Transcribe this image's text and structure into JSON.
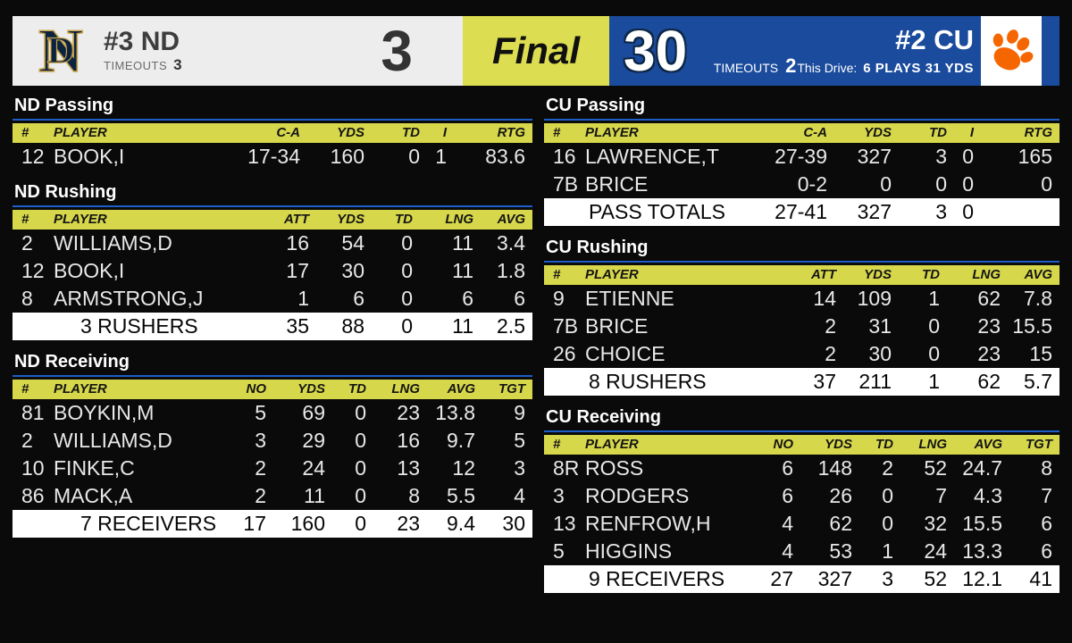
{
  "scoreboard": {
    "home": {
      "team": "#3 ND",
      "timeouts_label": "TIMEOUTS",
      "timeouts": "3",
      "score": "3",
      "logo": "nd-monogram"
    },
    "status": "Final",
    "away": {
      "team": "#2 CU",
      "timeouts_label": "TIMEOUTS",
      "timeouts": "2",
      "drive_label": "This Drive:",
      "drive_value": "6 PLAYS 31 YDS",
      "score": "30",
      "logo": "clemson-paw"
    }
  },
  "colors": {
    "header_yellow": "#d6d74b",
    "panel_yellow": "#dcdd50",
    "cu_blue": "#1a4b9c",
    "rule_blue": "#1d5ec7",
    "nd_navy": "#0c2340",
    "nd_gold": "#c9a44c",
    "clemson_orange": "#f56600",
    "panel_gray": "#ededed",
    "score_outline": "#0d2747"
  },
  "sections": [
    {
      "id": "nd-passing",
      "side": "left",
      "kind": "passing",
      "title": "ND Passing",
      "columns": [
        "#",
        "PLAYER",
        "C-A",
        "YDS",
        "TD",
        "I",
        "RTG"
      ],
      "rows": [
        [
          "12",
          "BOOK,I",
          "17-34",
          "160",
          "0",
          "1",
          "83.6"
        ]
      ],
      "totals": null
    },
    {
      "id": "nd-rushing",
      "side": "left",
      "kind": "rushing",
      "title": "ND Rushing",
      "columns": [
        "#",
        "PLAYER",
        "ATT",
        "YDS",
        "TD",
        "LNG",
        "AVG"
      ],
      "rows": [
        [
          "2",
          "WILLIAMS,D",
          "16",
          "54",
          "0",
          "11",
          "3.4"
        ],
        [
          "12",
          "BOOK,I",
          "17",
          "30",
          "0",
          "11",
          "1.8"
        ],
        [
          "8",
          "ARMSTRONG,J",
          "1",
          "6",
          "0",
          "6",
          "6"
        ]
      ],
      "totals": [
        "",
        "3 RUSHERS",
        "35",
        "88",
        "0",
        "11",
        "2.5"
      ]
    },
    {
      "id": "nd-receiving",
      "side": "left",
      "kind": "receiving",
      "title": "ND Receiving",
      "columns": [
        "#",
        "PLAYER",
        "NO",
        "YDS",
        "TD",
        "LNG",
        "AVG",
        "TGT"
      ],
      "rows": [
        [
          "81",
          "BOYKIN,M",
          "5",
          "69",
          "0",
          "23",
          "13.8",
          "9"
        ],
        [
          "2",
          "WILLIAMS,D",
          "3",
          "29",
          "0",
          "16",
          "9.7",
          "5"
        ],
        [
          "10",
          "FINKE,C",
          "2",
          "24",
          "0",
          "13",
          "12",
          "3"
        ],
        [
          "86",
          "MACK,A",
          "2",
          "11",
          "0",
          "8",
          "5.5",
          "4"
        ]
      ],
      "totals": [
        "",
        "7 RECEIVERS",
        "17",
        "160",
        "0",
        "23",
        "9.4",
        "30"
      ]
    },
    {
      "id": "cu-passing",
      "side": "right",
      "kind": "passing",
      "title": "CU Passing",
      "columns": [
        "#",
        "PLAYER",
        "C-A",
        "YDS",
        "TD",
        "I",
        "RTG"
      ],
      "rows": [
        [
          "16",
          "LAWRENCE,T",
          "27-39",
          "327",
          "3",
          "0",
          "165"
        ],
        [
          "7B",
          "BRICE",
          "0-2",
          "0",
          "0",
          "0",
          "0"
        ]
      ],
      "totals": [
        "",
        "PASS TOTALS",
        "27-41",
        "327",
        "3",
        "0",
        ""
      ]
    },
    {
      "id": "cu-rushing",
      "side": "right",
      "kind": "rushing",
      "title": "CU Rushing",
      "columns": [
        "#",
        "PLAYER",
        "ATT",
        "YDS",
        "TD",
        "LNG",
        "AVG"
      ],
      "rows": [
        [
          "9",
          "ETIENNE",
          "14",
          "109",
          "1",
          "62",
          "7.8"
        ],
        [
          "7B",
          "BRICE",
          "2",
          "31",
          "0",
          "23",
          "15.5"
        ],
        [
          "26",
          "CHOICE",
          "2",
          "30",
          "0",
          "23",
          "15"
        ]
      ],
      "totals": [
        "",
        "8 RUSHERS",
        "37",
        "211",
        "1",
        "62",
        "5.7"
      ]
    },
    {
      "id": "cu-receiving",
      "side": "right",
      "kind": "receiving",
      "title": "CU Receiving",
      "columns": [
        "#",
        "PLAYER",
        "NO",
        "YDS",
        "TD",
        "LNG",
        "AVG",
        "TGT"
      ],
      "rows": [
        [
          "8R",
          "ROSS",
          "6",
          "148",
          "2",
          "52",
          "24.7",
          "8"
        ],
        [
          "3",
          "RODGERS",
          "6",
          "26",
          "0",
          "7",
          "4.3",
          "7"
        ],
        [
          "13",
          "RENFROW,H",
          "4",
          "62",
          "0",
          "32",
          "15.5",
          "6"
        ],
        [
          "5",
          "HIGGINS",
          "4",
          "53",
          "1",
          "24",
          "13.3",
          "6"
        ]
      ],
      "totals": [
        "",
        "9 RECEIVERS",
        "27",
        "327",
        "3",
        "52",
        "12.1",
        "41"
      ]
    }
  ]
}
